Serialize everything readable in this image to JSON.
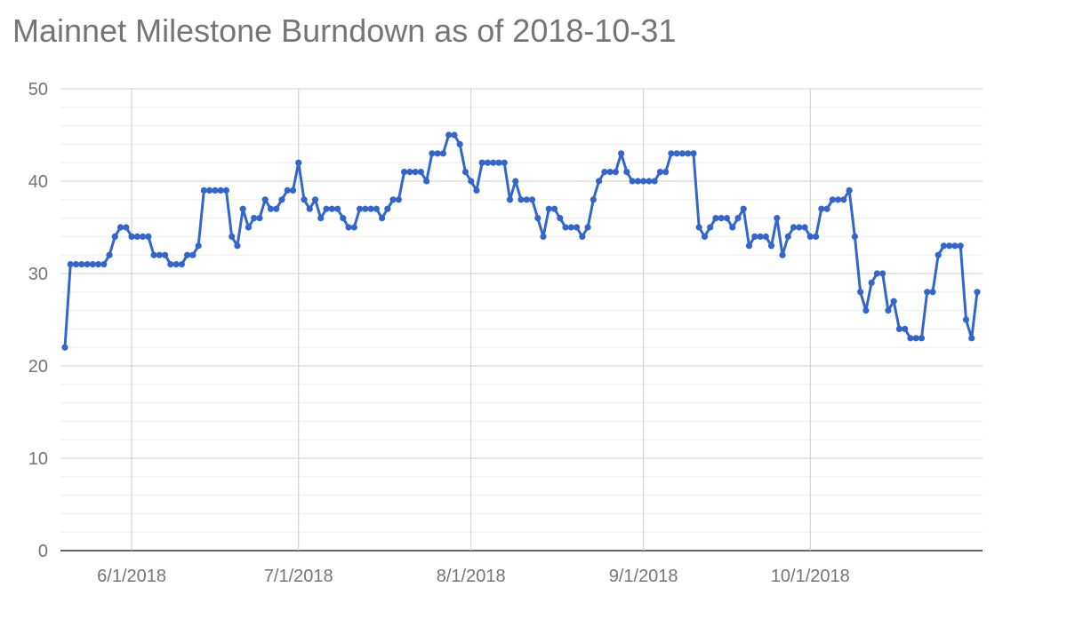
{
  "chart_data": {
    "type": "line",
    "title": "Mainnet Milestone Burndown as of 2018-10-31",
    "xlabel": "",
    "ylabel": "",
    "ylim": [
      0,
      50
    ],
    "xlim": [
      "2018-05-20",
      "2018-10-31"
    ],
    "grid": true,
    "y_ticks": [
      0,
      10,
      20,
      30,
      40,
      50
    ],
    "x_ticks": [
      {
        "date": "2018-06-01",
        "label": "6/1/2018"
      },
      {
        "date": "2018-07-01",
        "label": "7/1/2018"
      },
      {
        "date": "2018-08-01",
        "label": "8/1/2018"
      },
      {
        "date": "2018-09-01",
        "label": "9/1/2018"
      },
      {
        "date": "2018-10-01",
        "label": "10/1/2018"
      }
    ],
    "series": [
      {
        "color": "#3366cc",
        "points": [
          [
            "2018-05-20",
            22
          ],
          [
            "2018-05-21",
            31
          ],
          [
            "2018-05-22",
            31
          ],
          [
            "2018-05-23",
            31
          ],
          [
            "2018-05-24",
            31
          ],
          [
            "2018-05-25",
            31
          ],
          [
            "2018-05-26",
            31
          ],
          [
            "2018-05-27",
            31
          ],
          [
            "2018-05-28",
            32
          ],
          [
            "2018-05-29",
            34
          ],
          [
            "2018-05-30",
            35
          ],
          [
            "2018-05-31",
            35
          ],
          [
            "2018-06-01",
            34
          ],
          [
            "2018-06-02",
            34
          ],
          [
            "2018-06-03",
            34
          ],
          [
            "2018-06-04",
            34
          ],
          [
            "2018-06-05",
            32
          ],
          [
            "2018-06-06",
            32
          ],
          [
            "2018-06-07",
            32
          ],
          [
            "2018-06-08",
            31
          ],
          [
            "2018-06-09",
            31
          ],
          [
            "2018-06-10",
            31
          ],
          [
            "2018-06-11",
            32
          ],
          [
            "2018-06-12",
            32
          ],
          [
            "2018-06-13",
            33
          ],
          [
            "2018-06-14",
            39
          ],
          [
            "2018-06-15",
            39
          ],
          [
            "2018-06-16",
            39
          ],
          [
            "2018-06-17",
            39
          ],
          [
            "2018-06-18",
            39
          ],
          [
            "2018-06-19",
            34
          ],
          [
            "2018-06-20",
            33
          ],
          [
            "2018-06-21",
            37
          ],
          [
            "2018-06-22",
            35
          ],
          [
            "2018-06-23",
            36
          ],
          [
            "2018-06-24",
            36
          ],
          [
            "2018-06-25",
            38
          ],
          [
            "2018-06-26",
            37
          ],
          [
            "2018-06-27",
            37
          ],
          [
            "2018-06-28",
            38
          ],
          [
            "2018-06-29",
            39
          ],
          [
            "2018-06-30",
            39
          ],
          [
            "2018-07-01",
            42
          ],
          [
            "2018-07-02",
            38
          ],
          [
            "2018-07-03",
            37
          ],
          [
            "2018-07-04",
            38
          ],
          [
            "2018-07-05",
            36
          ],
          [
            "2018-07-06",
            37
          ],
          [
            "2018-07-07",
            37
          ],
          [
            "2018-07-08",
            37
          ],
          [
            "2018-07-09",
            36
          ],
          [
            "2018-07-10",
            35
          ],
          [
            "2018-07-11",
            35
          ],
          [
            "2018-07-12",
            37
          ],
          [
            "2018-07-13",
            37
          ],
          [
            "2018-07-14",
            37
          ],
          [
            "2018-07-15",
            37
          ],
          [
            "2018-07-16",
            36
          ],
          [
            "2018-07-17",
            37
          ],
          [
            "2018-07-18",
            38
          ],
          [
            "2018-07-19",
            38
          ],
          [
            "2018-07-20",
            41
          ],
          [
            "2018-07-21",
            41
          ],
          [
            "2018-07-22",
            41
          ],
          [
            "2018-07-23",
            41
          ],
          [
            "2018-07-24",
            40
          ],
          [
            "2018-07-25",
            43
          ],
          [
            "2018-07-26",
            43
          ],
          [
            "2018-07-27",
            43
          ],
          [
            "2018-07-28",
            45
          ],
          [
            "2018-07-29",
            45
          ],
          [
            "2018-07-30",
            44
          ],
          [
            "2018-07-31",
            41
          ],
          [
            "2018-08-01",
            40
          ],
          [
            "2018-08-02",
            39
          ],
          [
            "2018-08-03",
            42
          ],
          [
            "2018-08-04",
            42
          ],
          [
            "2018-08-05",
            42
          ],
          [
            "2018-08-06",
            42
          ],
          [
            "2018-08-07",
            42
          ],
          [
            "2018-08-08",
            38
          ],
          [
            "2018-08-09",
            40
          ],
          [
            "2018-08-10",
            38
          ],
          [
            "2018-08-11",
            38
          ],
          [
            "2018-08-12",
            38
          ],
          [
            "2018-08-13",
            36
          ],
          [
            "2018-08-14",
            34
          ],
          [
            "2018-08-15",
            37
          ],
          [
            "2018-08-16",
            37
          ],
          [
            "2018-08-17",
            36
          ],
          [
            "2018-08-18",
            35
          ],
          [
            "2018-08-19",
            35
          ],
          [
            "2018-08-20",
            35
          ],
          [
            "2018-08-21",
            34
          ],
          [
            "2018-08-22",
            35
          ],
          [
            "2018-08-23",
            38
          ],
          [
            "2018-08-24",
            40
          ],
          [
            "2018-08-25",
            41
          ],
          [
            "2018-08-26",
            41
          ],
          [
            "2018-08-27",
            41
          ],
          [
            "2018-08-28",
            43
          ],
          [
            "2018-08-29",
            41
          ],
          [
            "2018-08-30",
            40
          ],
          [
            "2018-08-31",
            40
          ],
          [
            "2018-09-01",
            40
          ],
          [
            "2018-09-02",
            40
          ],
          [
            "2018-09-03",
            40
          ],
          [
            "2018-09-04",
            41
          ],
          [
            "2018-09-05",
            41
          ],
          [
            "2018-09-06",
            43
          ],
          [
            "2018-09-07",
            43
          ],
          [
            "2018-09-08",
            43
          ],
          [
            "2018-09-09",
            43
          ],
          [
            "2018-09-10",
            43
          ],
          [
            "2018-09-11",
            35
          ],
          [
            "2018-09-12",
            34
          ],
          [
            "2018-09-13",
            35
          ],
          [
            "2018-09-14",
            36
          ],
          [
            "2018-09-15",
            36
          ],
          [
            "2018-09-16",
            36
          ],
          [
            "2018-09-17",
            35
          ],
          [
            "2018-09-18",
            36
          ],
          [
            "2018-09-19",
            37
          ],
          [
            "2018-09-20",
            33
          ],
          [
            "2018-09-21",
            34
          ],
          [
            "2018-09-22",
            34
          ],
          [
            "2018-09-23",
            34
          ],
          [
            "2018-09-24",
            33
          ],
          [
            "2018-09-25",
            36
          ],
          [
            "2018-09-26",
            32
          ],
          [
            "2018-09-27",
            34
          ],
          [
            "2018-09-28",
            35
          ],
          [
            "2018-09-29",
            35
          ],
          [
            "2018-09-30",
            35
          ],
          [
            "2018-10-01",
            34
          ],
          [
            "2018-10-02",
            34
          ],
          [
            "2018-10-03",
            37
          ],
          [
            "2018-10-04",
            37
          ],
          [
            "2018-10-05",
            38
          ],
          [
            "2018-10-06",
            38
          ],
          [
            "2018-10-07",
            38
          ],
          [
            "2018-10-08",
            39
          ],
          [
            "2018-10-09",
            34
          ],
          [
            "2018-10-10",
            28
          ],
          [
            "2018-10-11",
            26
          ],
          [
            "2018-10-12",
            29
          ],
          [
            "2018-10-13",
            30
          ],
          [
            "2018-10-14",
            30
          ],
          [
            "2018-10-15",
            26
          ],
          [
            "2018-10-16",
            27
          ],
          [
            "2018-10-17",
            24
          ],
          [
            "2018-10-18",
            24
          ],
          [
            "2018-10-19",
            23
          ],
          [
            "2018-10-20",
            23
          ],
          [
            "2018-10-21",
            23
          ],
          [
            "2018-10-22",
            28
          ],
          [
            "2018-10-23",
            28
          ],
          [
            "2018-10-24",
            32
          ],
          [
            "2018-10-25",
            33
          ],
          [
            "2018-10-26",
            33
          ],
          [
            "2018-10-27",
            33
          ],
          [
            "2018-10-28",
            33
          ],
          [
            "2018-10-29",
            25
          ],
          [
            "2018-10-30",
            23
          ],
          [
            "2018-10-31",
            28
          ]
        ]
      }
    ]
  }
}
